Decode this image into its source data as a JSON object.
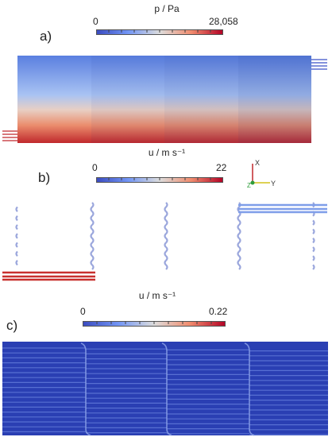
{
  "panels": [
    {
      "label": "a)",
      "colorbar": {
        "title": "p / Pa",
        "min_label": "0",
        "max_label": "28,058",
        "min": 0,
        "max": 28058
      }
    },
    {
      "label": "b)",
      "colorbar": {
        "title": "u / m s⁻¹",
        "min_label": "0",
        "max_label": "22",
        "min": 0,
        "max": 22
      }
    },
    {
      "label": "c)",
      "colorbar": {
        "title": "u / m s⁻¹",
        "min_label": "0",
        "max_label": "0.22",
        "min": 0,
        "max": 0.22
      }
    }
  ],
  "axes_triad": {
    "x_label": "X",
    "y_label": "Y",
    "z_label": "Z"
  },
  "colors": {
    "cool": "#3b4cc0",
    "neutral": "#dddddd",
    "warm": "#b40426",
    "background": "#ffffff"
  },
  "colormap": "cool-to-warm"
}
